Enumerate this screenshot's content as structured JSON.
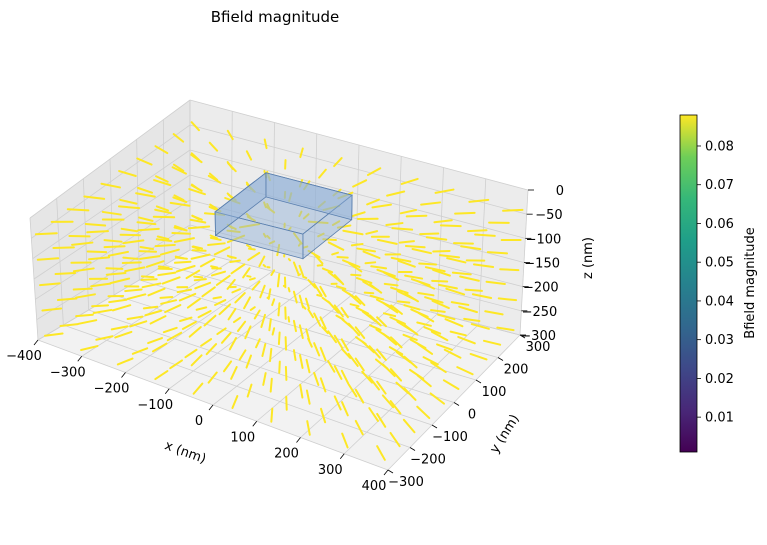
{
  "chart_data": {
    "type": "quiver3d",
    "title": "Bfield magnitude",
    "xlabel": "x (nm)",
    "ylabel": "y (nm)",
    "zlabel": "z (nm)",
    "xlim": [
      -400,
      400
    ],
    "ylim": [
      -300,
      300
    ],
    "zlim": [
      -300,
      0
    ],
    "xticks": [
      "−400",
      "−300",
      "−200",
      "−100",
      "0",
      "100",
      "200",
      "300",
      "400"
    ],
    "yticks": [
      "−300",
      "−200",
      "−100",
      "0",
      "100",
      "200",
      "300"
    ],
    "zticks": [
      "0",
      "−50",
      "−100",
      "−150",
      "−200",
      "−250",
      "−300"
    ],
    "grid": true,
    "colormap": "viridis",
    "colorbar": {
      "label": "Bfield magnitude",
      "range": [
        0.001,
        0.088
      ],
      "ticks": [
        "0.01",
        "0.02",
        "0.03",
        "0.04",
        "0.05",
        "0.06",
        "0.07",
        "0.08"
      ],
      "tick_values": [
        0.01,
        0.02,
        0.03,
        0.04,
        0.05,
        0.06,
        0.07,
        0.08
      ]
    },
    "source_box": {
      "x": [
        -100,
        100
      ],
      "y": [
        -100,
        100
      ],
      "z": [
        -50,
        0
      ],
      "color": "#8fb0d8"
    },
    "grid_samples": {
      "x_count": 10,
      "y_count": 10,
      "z_levels": [
        -40,
        -100,
        -160,
        -220,
        -280
      ]
    }
  }
}
